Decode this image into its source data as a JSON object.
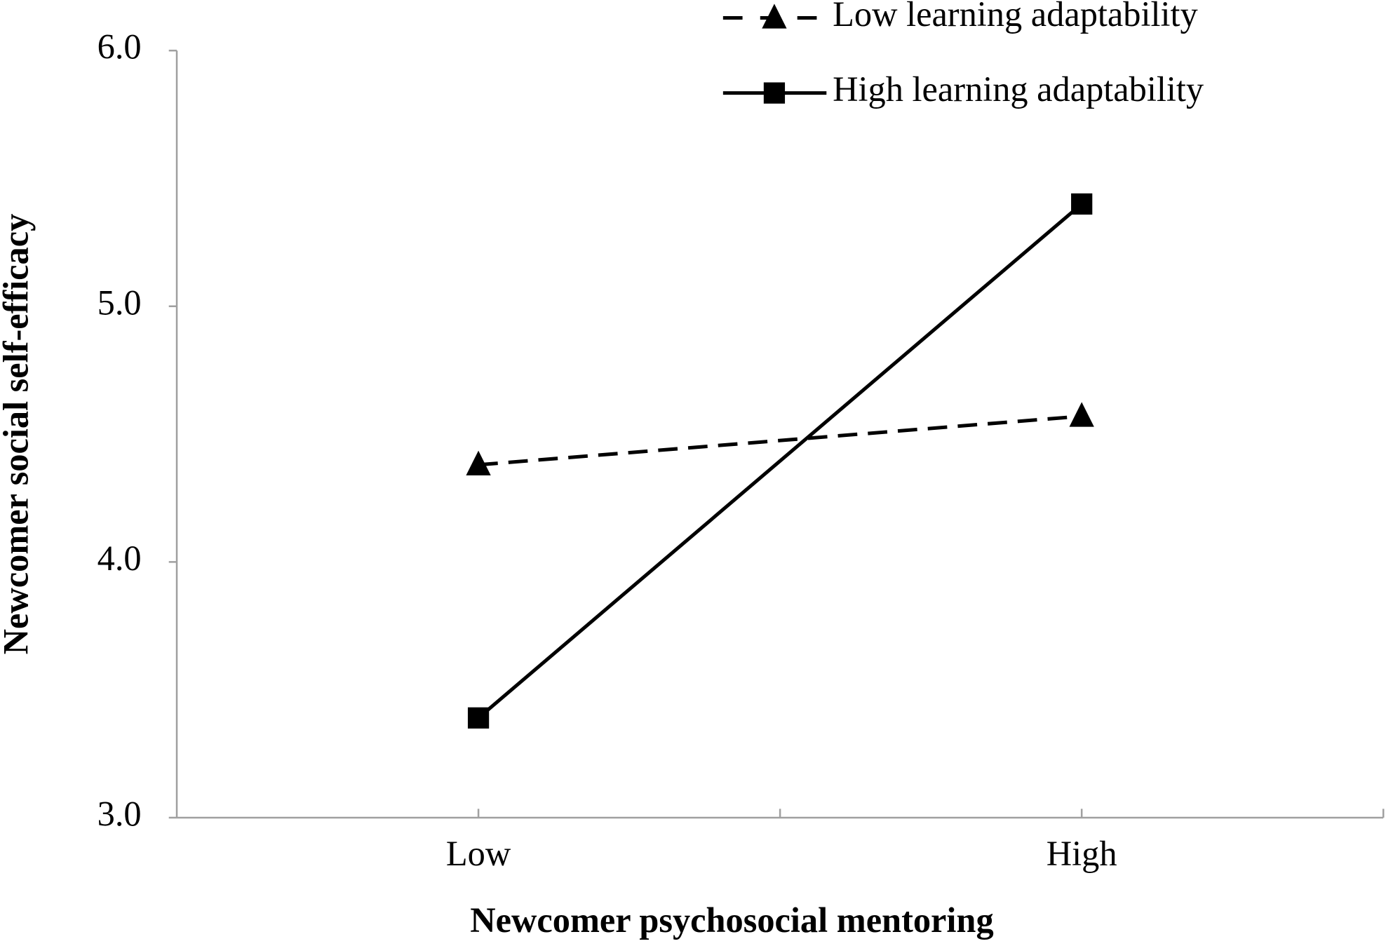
{
  "chart_data": {
    "type": "line",
    "x_label": "Newcomer psychosocial mentoring",
    "y_label": "Newcomer social self-efficacy",
    "categories": [
      "Low",
      "High"
    ],
    "series": [
      {
        "name": "Low learning adaptability",
        "color": "#000000",
        "dash": true,
        "marker": "triangle",
        "values": [
          4.38,
          4.57
        ]
      },
      {
        "name": "High learning adaptability",
        "color": "#000000",
        "dash": false,
        "marker": "square",
        "values": [
          3.39,
          5.4
        ]
      }
    ],
    "ylim": [
      3,
      6
    ],
    "yticks": [
      {
        "value": 3,
        "label": "3.0"
      },
      {
        "value": 4,
        "label": "4.0"
      },
      {
        "value": 5,
        "label": "5.0"
      },
      {
        "value": 6,
        "label": "6.0"
      }
    ],
    "legend": "top-right"
  }
}
